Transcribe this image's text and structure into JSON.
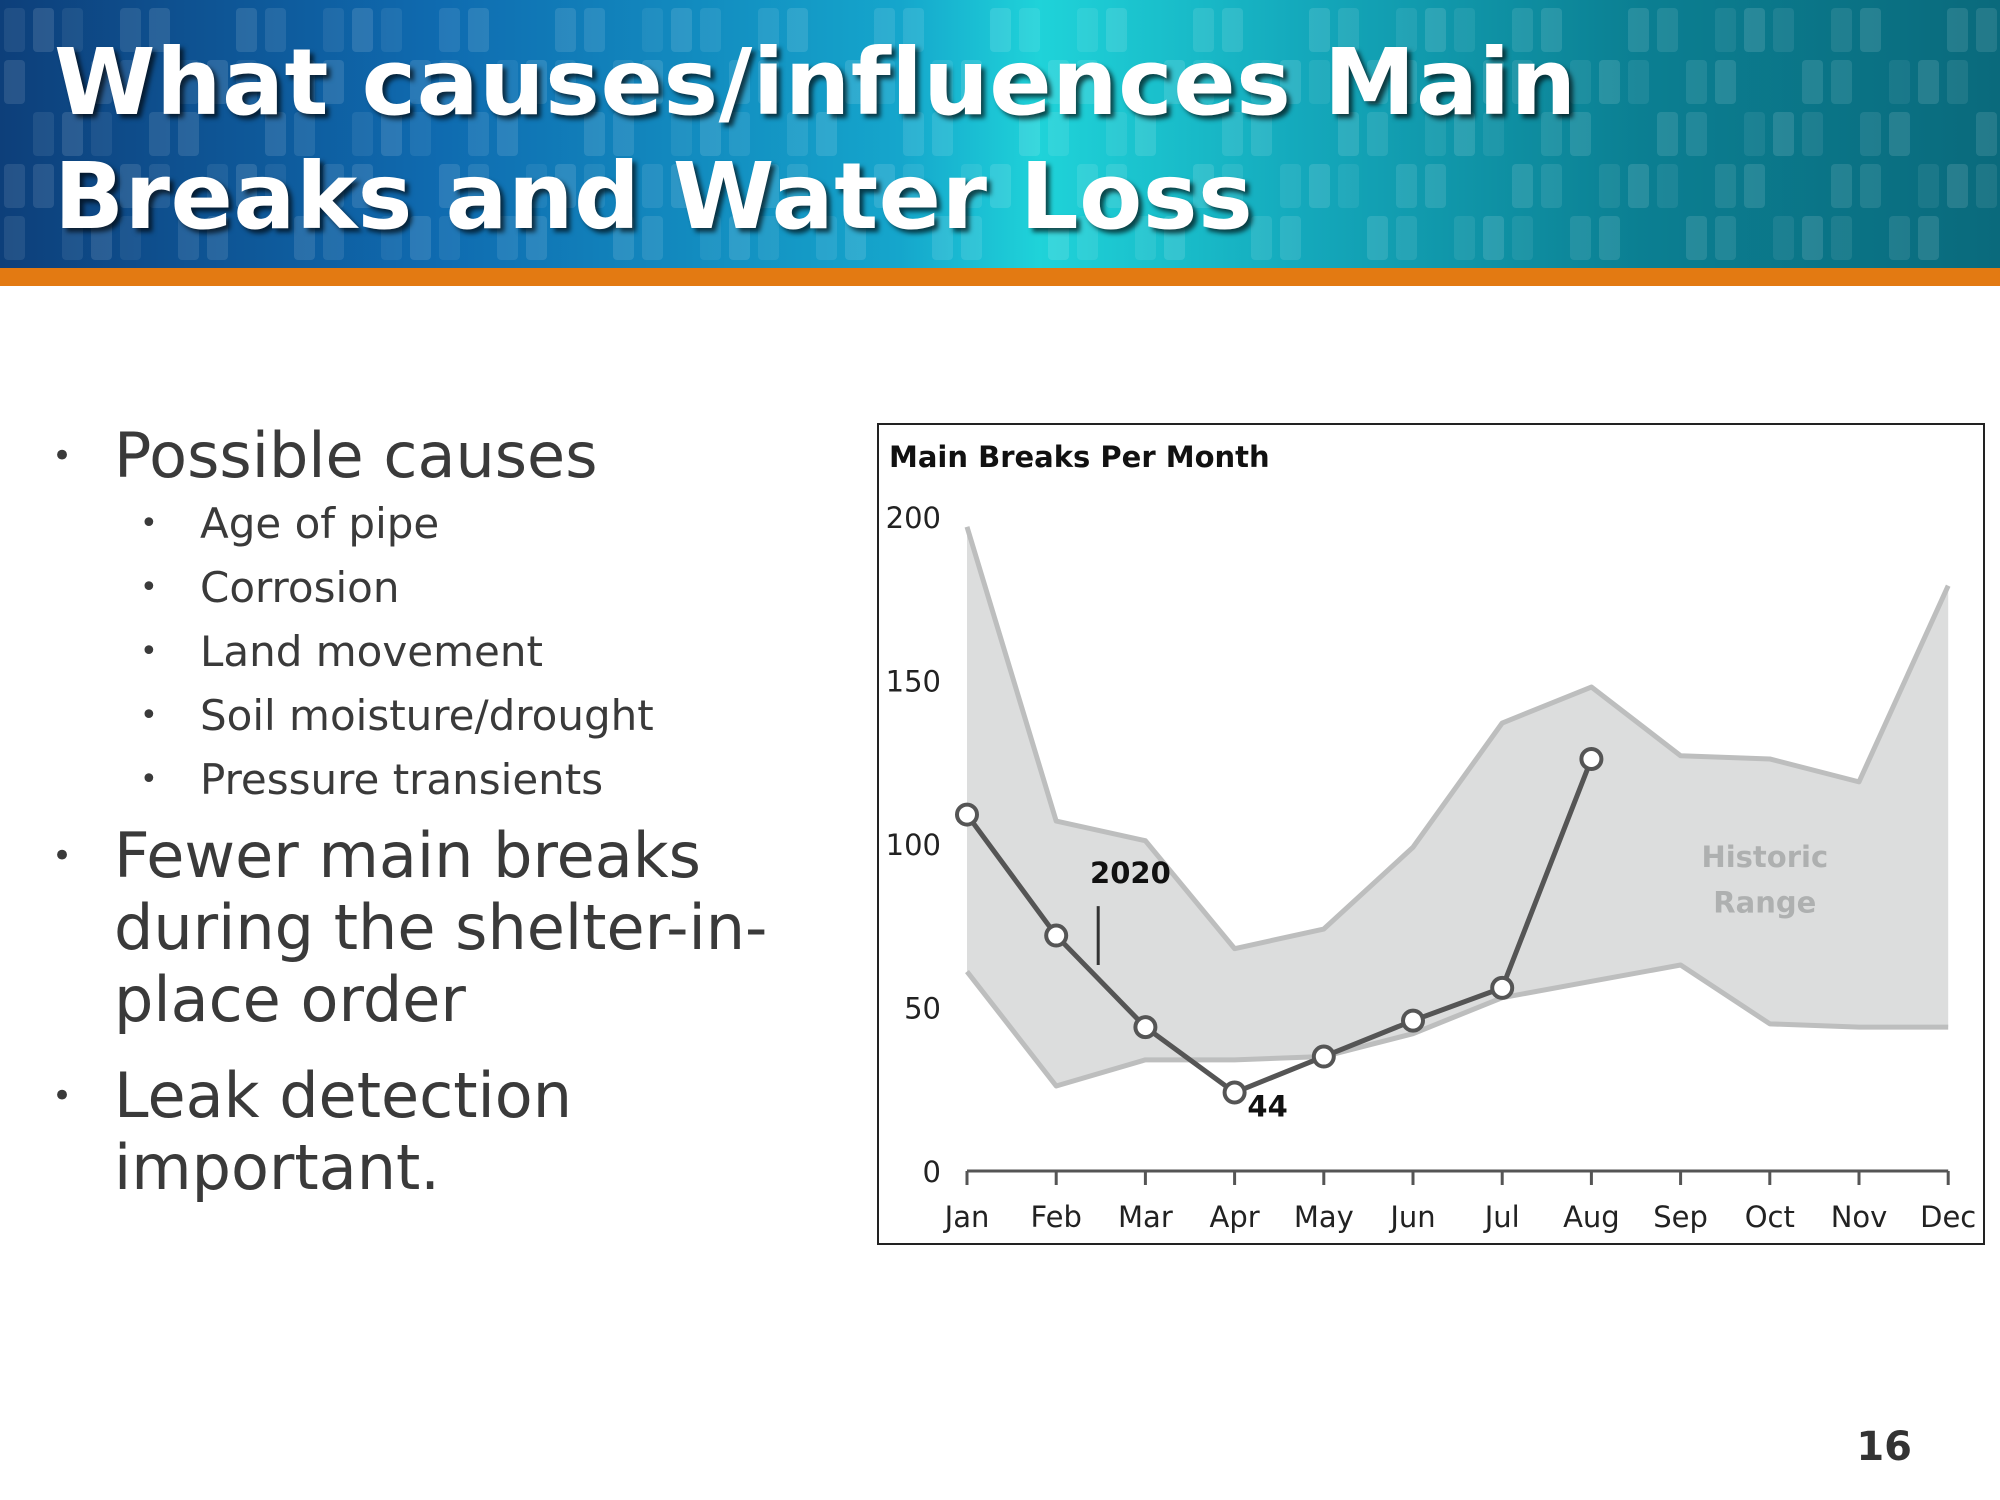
{
  "slide": {
    "title_line1": "What causes/influences Main",
    "title_line2": "Breaks and Water Loss",
    "page_number": "16",
    "colors": {
      "header_blue": "#0f6bb0",
      "header_teal": "#1fd3d9",
      "accent_orange": "#e37a12",
      "text": "#3a3a3a"
    }
  },
  "bullets": {
    "item1": "Possible causes",
    "sub_items": [
      "Age of pipe",
      "Corrosion",
      "Land movement",
      "Soil moisture/drought",
      "Pressure transients"
    ],
    "item2": "Fewer main breaks during the shelter-in-place order",
    "item3": "Leak detection important."
  },
  "chart_data": {
    "type": "line",
    "title": "Main Breaks Per Month",
    "categories": [
      "Jan",
      "Feb",
      "Mar",
      "Apr",
      "May",
      "Jun",
      "Jul",
      "Aug",
      "Sep",
      "Oct",
      "Nov",
      "Dec"
    ],
    "ylim": [
      0,
      200
    ],
    "yticks": [
      "0",
      "50",
      "100",
      "150",
      "200"
    ],
    "series": [
      {
        "name": "2020",
        "values": [
          109,
          72,
          44,
          24,
          35,
          46,
          56,
          126,
          null,
          null,
          null,
          null
        ],
        "color": "#555555"
      }
    ],
    "range_band": {
      "label_line1": "Historic",
      "label_line2": "Range",
      "upper": [
        197,
        107,
        101,
        68,
        74,
        99,
        137,
        148,
        127,
        126,
        119,
        179
      ],
      "lower": [
        61,
        26,
        34,
        34,
        35,
        42,
        53,
        58,
        63,
        45,
        44,
        44
      ],
      "fill": "#dcdddd",
      "stroke": "#bdbebe"
    },
    "annotations": [
      {
        "text": "2020",
        "month": "Mar"
      },
      {
        "text": "44",
        "month": "Apr"
      }
    ],
    "grid": false
  }
}
